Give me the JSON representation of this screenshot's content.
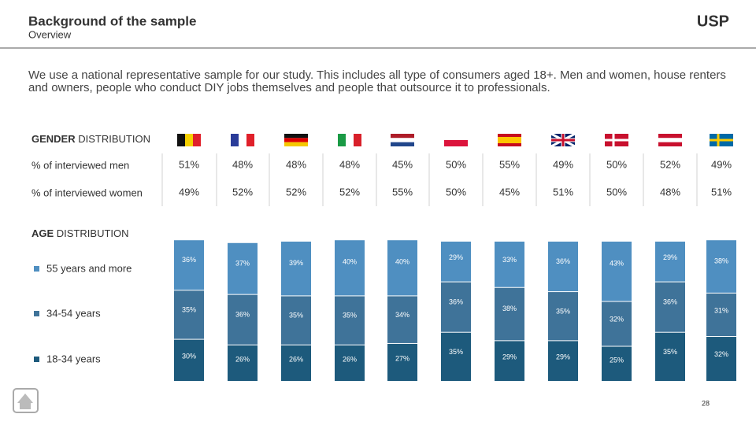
{
  "header": {
    "title": "Background of the sample",
    "subtitle": "Overview",
    "logo": "USP"
  },
  "intro": "We use a national representative sample for our study. This includes all type of consumers aged 18+. Men and women, house renters and owners, people who conduct DIY jobs themselves and people that outsource it to professionals.",
  "gender": {
    "heading_bold": "GENDER",
    "heading": "DISTRIBUTION",
    "rows": [
      {
        "label": "% of interviewed men",
        "values": [
          "51%",
          "48%",
          "48%",
          "48%",
          "45%",
          "50%",
          "55%",
          "49%",
          "50%",
          "52%",
          "49%"
        ]
      },
      {
        "label": "% of interviewed women",
        "values": [
          "49%",
          "52%",
          "52%",
          "52%",
          "55%",
          "50%",
          "45%",
          "51%",
          "50%",
          "48%",
          "51%"
        ]
      }
    ]
  },
  "chart_data": {
    "type": "stacked-bar",
    "heading_bold": "AGE",
    "heading": "DISTRIBUTION",
    "series": [
      {
        "name": "18-34 years",
        "color": "#1d5a7c",
        "values": [
          30,
          26,
          26,
          26,
          27,
          35,
          29,
          29,
          25,
          35,
          32
        ],
        "value_labels": [
          "30%",
          "26%",
          "26%",
          "26%",
          "27%",
          "35%",
          "29%",
          "29%",
          "25%",
          "35%",
          "32%"
        ]
      },
      {
        "name": "34-54 years",
        "color": "#3f7399",
        "values": [
          35,
          36,
          35,
          35,
          34,
          36,
          38,
          35,
          32,
          36,
          31
        ],
        "value_labels": [
          "35%",
          "36%",
          "35%",
          "35%",
          "34%",
          "36%",
          "38%",
          "35%",
          "32%",
          "36%",
          "31%"
        ]
      },
      {
        "name": "55 years and more",
        "color": "#4f8fc1",
        "values": [
          36,
          37,
          39,
          40,
          40,
          29,
          33,
          36,
          43,
          29,
          38
        ],
        "value_labels": [
          "36%",
          "37%",
          "39%",
          "40%",
          "40%",
          "29%",
          "33%",
          "36%",
          "43%",
          "29%",
          "38%"
        ]
      }
    ]
  },
  "page_number": 28
}
